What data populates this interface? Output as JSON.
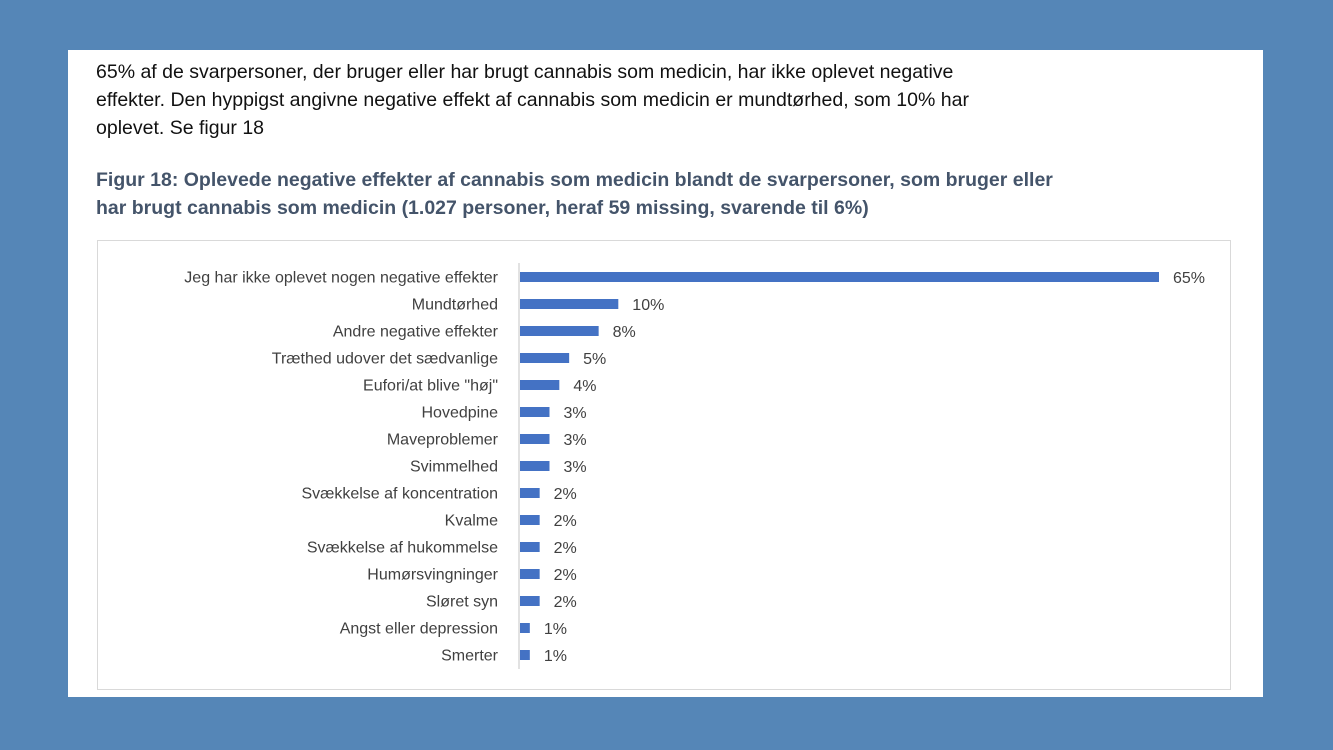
{
  "intro_text": "65% af de svarpersoner, der bruger eller har brugt cannabis som medicin, har ikke oplevet negative effekter. Den hyppigst angivne negative effekt af cannabis som medicin er mundtørhed, som 10% har oplevet. Se figur 18",
  "intro_lines": [
    "65% af de svarpersoner, der bruger eller har brugt cannabis som medicin, har ikke oplevet negative",
    "effekter. Den hyppigst angivne negative effekt af cannabis som medicin er mundtørhed, som 10% har",
    "oplevet. Se figur 18"
  ],
  "figure_title_lines": [
    "Figur 18: Oplevede negative effekter af cannabis som medicin blandt de svarpersoner, som bruger eller",
    "har brugt cannabis som medicin (1.027 personer, heraf 59 missing, svarende til 6%)"
  ],
  "colors": {
    "background": "#5586b7",
    "bar": "#4472c4",
    "title": "#44546a"
  },
  "chart_data": {
    "type": "bar",
    "orientation": "horizontal",
    "title": "Figur 18: Oplevede negative effekter af cannabis som medicin blandt de svarpersoner, som bruger eller har brugt cannabis som medicin (1.027 personer, heraf 59 missing, svarende til 6%)",
    "xlabel": "",
    "ylabel": "",
    "unit": "%",
    "xlim": [
      0,
      65
    ],
    "grid": false,
    "legend": "none",
    "categories": [
      "Jeg har ikke oplevet nogen negative effekter",
      "Mundtørhed",
      "Andre negative effekter",
      "Træthed udover det sædvanlige",
      "Eufori/at blive \"høj\"",
      "Hovedpine",
      "Maveproblemer",
      "Svimmelhed",
      "Svækkelse af koncentration",
      "Kvalme",
      "Svækkelse af hukommelse",
      "Humørsvingninger",
      "Sløret syn",
      "Angst eller depression",
      "Smerter"
    ],
    "values": [
      65,
      10,
      8,
      5,
      4,
      3,
      3,
      3,
      2,
      2,
      2,
      2,
      2,
      1,
      1
    ],
    "data_labels": [
      "65%",
      "10%",
      "8%",
      "5%",
      "4%",
      "3%",
      "3%",
      "3%",
      "2%",
      "2%",
      "2%",
      "2%",
      "2%",
      "1%",
      "1%"
    ]
  }
}
